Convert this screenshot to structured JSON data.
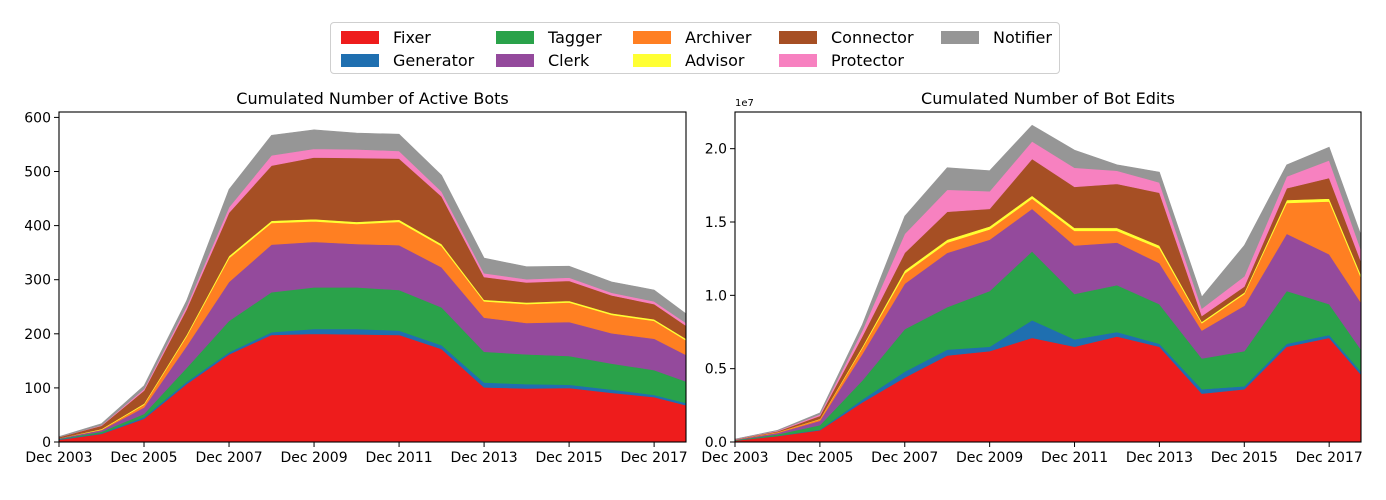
{
  "legend": {
    "items": [
      {
        "label": "Fixer",
        "color": "#ee1c1c"
      },
      {
        "label": "Generator",
        "color": "#1f6fb0"
      },
      {
        "label": "Tagger",
        "color": "#2aa24a"
      },
      {
        "label": "Clerk",
        "color": "#944a9c"
      },
      {
        "label": "Archiver",
        "color": "#ff7f22"
      },
      {
        "label": "Advisor",
        "color": "#ffff33"
      },
      {
        "label": "Connector",
        "color": "#a64f24"
      },
      {
        "label": "Protector",
        "color": "#f781c0"
      },
      {
        "label": "Notifier",
        "color": "#969696"
      }
    ]
  },
  "chart_data": [
    {
      "type": "area",
      "stacked": true,
      "title": "Cumulated Number of Active Bots",
      "xlabel": "",
      "ylabel": "",
      "x": [
        "2003-12",
        "2004-12",
        "2005-12",
        "2006-12",
        "2007-12",
        "2008-12",
        "2009-12",
        "2010-12",
        "2011-12",
        "2012-12",
        "2013-12",
        "2014-12",
        "2015-12",
        "2016-12",
        "2017-12",
        "2018-09"
      ],
      "xticks": [
        "Dec 2003",
        "Dec 2005",
        "Dec 2007",
        "Dec 2009",
        "Dec 2011",
        "Dec 2013",
        "Dec 2015",
        "Dec 2017"
      ],
      "ylim": [
        0,
        610
      ],
      "yticks": [
        "0",
        "100",
        "200",
        "300",
        "400",
        "500",
        "600"
      ],
      "grid": false,
      "series": [
        {
          "name": "Fixer",
          "color": "#ee1c1c",
          "values": [
            4,
            15,
            43,
            107,
            162,
            198,
            200,
            199,
            198,
            172,
            101,
            99,
            100,
            91,
            83,
            68
          ]
        },
        {
          "name": "Generator",
          "color": "#1f6fb0",
          "values": [
            1,
            1,
            3,
            4,
            4,
            5,
            9,
            10,
            8,
            7,
            9,
            8,
            6,
            6,
            4,
            4
          ]
        },
        {
          "name": "Tagger",
          "color": "#2aa24a",
          "values": [
            1,
            3,
            6,
            26,
            58,
            74,
            77,
            77,
            75,
            70,
            57,
            55,
            53,
            48,
            46,
            40
          ]
        },
        {
          "name": "Clerk",
          "color": "#944a9c",
          "values": [
            1,
            3,
            12,
            40,
            72,
            88,
            84,
            80,
            83,
            74,
            63,
            58,
            63,
            56,
            58,
            49
          ]
        },
        {
          "name": "Archiver",
          "color": "#ff7f22",
          "values": [
            0,
            1,
            5,
            18,
            44,
            40,
            38,
            37,
            43,
            39,
            30,
            35,
            36,
            34,
            33,
            27
          ]
        },
        {
          "name": "Advisor",
          "color": "#ffff33",
          "values": [
            0,
            1,
            2,
            3,
            4,
            4,
            4,
            4,
            4,
            4,
            3,
            3,
            3,
            3,
            3,
            3
          ]
        },
        {
          "name": "Connector",
          "color": "#a64f24",
          "values": [
            2,
            6,
            24,
            47,
            80,
            102,
            114,
            118,
            113,
            88,
            42,
            37,
            37,
            33,
            28,
            24
          ]
        },
        {
          "name": "Protector",
          "color": "#f781c0",
          "values": [
            0,
            1,
            3,
            6,
            10,
            19,
            16,
            16,
            14,
            9,
            7,
            6,
            6,
            5,
            5,
            5
          ]
        },
        {
          "name": "Notifier",
          "color": "#969696",
          "values": [
            1,
            3,
            6,
            10,
            33,
            37,
            35,
            30,
            31,
            30,
            28,
            23,
            21,
            20,
            21,
            17
          ]
        }
      ]
    },
    {
      "type": "area",
      "stacked": true,
      "title": "Cumulated Number of Bot Edits",
      "xlabel": "",
      "ylabel": "",
      "y_offset_text": "1e7",
      "x": [
        "2003-12",
        "2004-12",
        "2005-12",
        "2006-12",
        "2007-12",
        "2008-12",
        "2009-12",
        "2010-12",
        "2011-12",
        "2012-12",
        "2013-12",
        "2014-12",
        "2015-12",
        "2016-12",
        "2017-12",
        "2018-09"
      ],
      "xticks": [
        "Dec 2003",
        "Dec 2005",
        "Dec 2007",
        "Dec 2009",
        "Dec 2011",
        "Dec 2013",
        "Dec 2015",
        "Dec 2017"
      ],
      "ylim": [
        0,
        2.25
      ],
      "yticks": [
        "0.0",
        "0.5",
        "1.0",
        "1.5",
        "2.0"
      ],
      "grid": false,
      "series": [
        {
          "name": "Fixer",
          "color": "#ee1c1c",
          "values": [
            0.01,
            0.04,
            0.08,
            0.27,
            0.44,
            0.59,
            0.62,
            0.71,
            0.65,
            0.72,
            0.65,
            0.33,
            0.36,
            0.65,
            0.71,
            0.46
          ]
        },
        {
          "name": "Generator",
          "color": "#1f6fb0",
          "values": [
            0,
            0.002,
            0.005,
            0.02,
            0.04,
            0.04,
            0.03,
            0.12,
            0.05,
            0.03,
            0.02,
            0.03,
            0.02,
            0.02,
            0.02,
            0.02
          ]
        },
        {
          "name": "Tagger",
          "color": "#2aa24a",
          "values": [
            0.003,
            0.01,
            0.03,
            0.13,
            0.29,
            0.29,
            0.38,
            0.47,
            0.31,
            0.32,
            0.27,
            0.21,
            0.24,
            0.36,
            0.21,
            0.15
          ]
        },
        {
          "name": "Clerk",
          "color": "#944a9c",
          "values": [
            0.003,
            0.01,
            0.03,
            0.18,
            0.31,
            0.37,
            0.35,
            0.29,
            0.33,
            0.29,
            0.28,
            0.19,
            0.31,
            0.39,
            0.34,
            0.32
          ]
        },
        {
          "name": "Archiver",
          "color": "#ff7f22",
          "values": [
            0.001,
            0.005,
            0.01,
            0.04,
            0.07,
            0.07,
            0.07,
            0.07,
            0.1,
            0.08,
            0.1,
            0.05,
            0.08,
            0.21,
            0.36,
            0.17
          ]
        },
        {
          "name": "Advisor",
          "color": "#ffff33",
          "values": [
            0,
            0.001,
            0.003,
            0.01,
            0.02,
            0.02,
            0.02,
            0.02,
            0.02,
            0.02,
            0.02,
            0.01,
            0.01,
            0.02,
            0.02,
            0.02
          ]
        },
        {
          "name": "Connector",
          "color": "#a64f24",
          "values": [
            0.001,
            0.005,
            0.02,
            0.07,
            0.12,
            0.19,
            0.12,
            0.25,
            0.28,
            0.3,
            0.36,
            0.04,
            0.04,
            0.08,
            0.14,
            0.09
          ]
        },
        {
          "name": "Protector",
          "color": "#f781c0",
          "values": [
            0.001,
            0.004,
            0.01,
            0.04,
            0.13,
            0.15,
            0.12,
            0.12,
            0.13,
            0.09,
            0.07,
            0.05,
            0.07,
            0.08,
            0.12,
            0.08
          ]
        },
        {
          "name": "Notifier",
          "color": "#969696",
          "values": [
            0.001,
            0.003,
            0.01,
            0.04,
            0.12,
            0.15,
            0.14,
            0.11,
            0.12,
            0.04,
            0.07,
            0.08,
            0.21,
            0.08,
            0.09,
            0.1
          ]
        }
      ]
    }
  ]
}
